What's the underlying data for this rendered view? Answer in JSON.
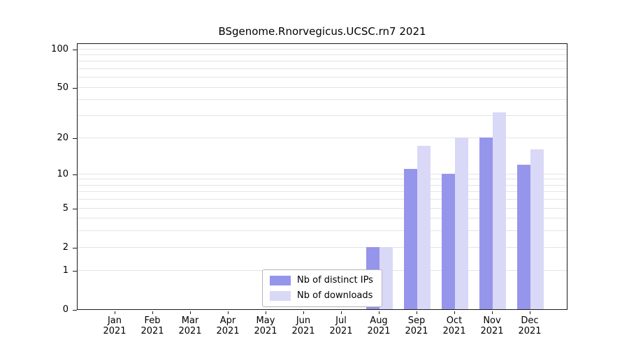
{
  "title": "BSgenome.Rnorvegicus.UCSC.rn7 2021",
  "chart_data": {
    "type": "bar",
    "title": "BSgenome.Rnorvegicus.UCSC.rn7 2021",
    "xlabel": "",
    "ylabel": "",
    "scale": "log1p",
    "grid": true,
    "legend_position": "bottom-center-inside",
    "year": "2021",
    "months": [
      "Jan",
      "Feb",
      "Mar",
      "Apr",
      "May",
      "Jun",
      "Jul",
      "Aug",
      "Sep",
      "Oct",
      "Nov",
      "Dec"
    ],
    "categories": [
      "Jan 2021",
      "Feb 2021",
      "Mar 2021",
      "Apr 2021",
      "May 2021",
      "Jun 2021",
      "Jul 2021",
      "Aug 2021",
      "Sep 2021",
      "Oct 2021",
      "Nov 2021",
      "Dec 2021"
    ],
    "series": [
      {
        "name": "Nb of distinct IPs",
        "color": "#9695ec",
        "values": [
          0,
          0,
          0,
          0,
          0,
          0,
          0,
          2,
          11,
          10,
          20,
          12
        ]
      },
      {
        "name": "Nb of downloads",
        "color": "#d9d8f7",
        "values": [
          0,
          0,
          0,
          0,
          0,
          0,
          0,
          2,
          17,
          20,
          32,
          16
        ]
      }
    ],
    "y_ticks": [
      0,
      1,
      2,
      5,
      10,
      20,
      50,
      100
    ],
    "gridlines": [
      1,
      2,
      3,
      4,
      5,
      6,
      7,
      8,
      9,
      10,
      20,
      30,
      40,
      50,
      60,
      70,
      80,
      90,
      100
    ],
    "ylim": [
      0,
      112
    ]
  }
}
